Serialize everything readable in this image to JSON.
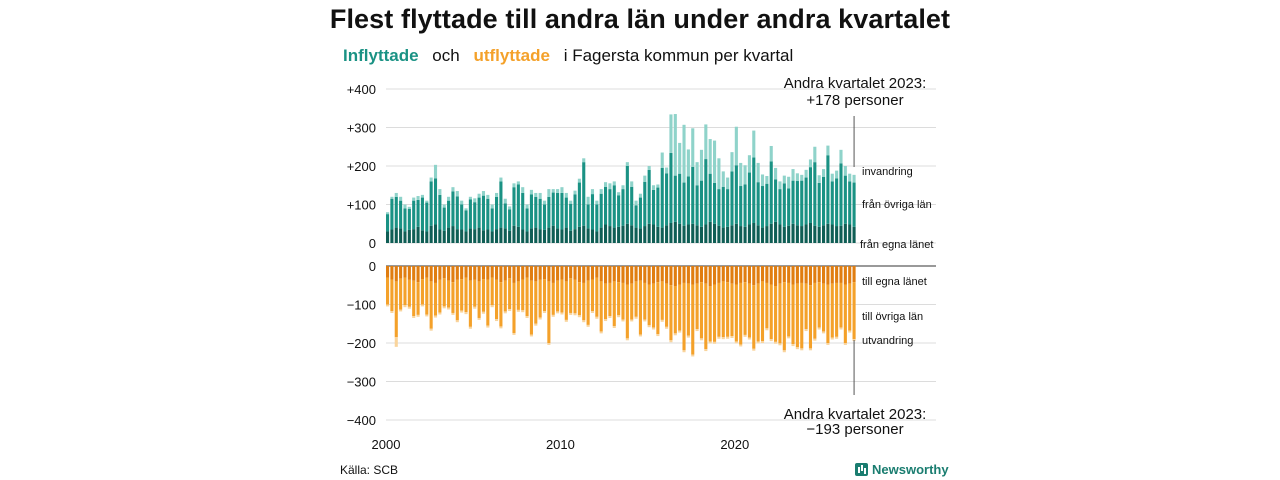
{
  "title": "Flest flyttade till andra län under andra kvartalet",
  "subtitle": {
    "inflyttade": "Inflyttade",
    "och": "och",
    "utflyttade": "utflyttade",
    "rest": "i Fagersta  kommun  per  kvartal"
  },
  "source": "Källa: SCB",
  "brand": "Newsworthy",
  "colors": {
    "in_local": "#0f5e55",
    "in_other": "#1a9284",
    "in_immigration": "#8fd3ca",
    "out_local": "#e07d10",
    "out_other": "#f4a12a",
    "out_emigration": "#f9d49c"
  },
  "chart_data": [
    {
      "type": "bar",
      "subtype": "stacked",
      "title": "Inflyttade",
      "x_start": "2000 Q1",
      "x_ticks": [
        "2000",
        "2010",
        "2020"
      ],
      "y_ticks": [
        "+400",
        "+300",
        "+200",
        "+100",
        "0"
      ],
      "ylim": [
        0,
        400
      ],
      "annotation": {
        "line1": "Andra kvartalet 2023:",
        "line2": "+178 personer"
      },
      "series": [
        {
          "name": "från egna länet",
          "values": [
            30,
            35,
            40,
            38,
            30,
            34,
            36,
            42,
            33,
            30,
            45,
            48,
            35,
            32,
            40,
            44,
            36,
            35,
            30,
            38,
            36,
            40,
            33,
            35,
            30,
            36,
            40,
            38,
            32,
            45,
            42,
            35,
            30,
            38,
            40,
            36,
            34,
            40,
            45,
            38,
            35,
            40,
            32,
            36,
            42,
            45,
            38,
            35,
            30,
            40,
            48,
            44,
            40,
            42,
            45,
            50,
            46,
            40,
            38,
            44,
            50,
            48,
            42,
            40,
            46,
            52,
            55,
            50,
            45,
            48,
            50,
            46,
            42,
            48,
            55,
            50,
            45,
            40,
            42,
            46,
            50,
            44,
            42,
            48,
            52,
            46,
            40,
            44,
            50,
            55,
            48,
            42,
            45,
            50,
            46,
            44,
            48,
            52,
            45,
            42,
            46,
            50,
            48,
            44,
            45,
            50,
            48,
            42
          ]
        },
        {
          "name": "från övriga län",
          "values": [
            45,
            80,
            80,
            72,
            60,
            55,
            74,
            70,
            85,
            75,
            115,
            120,
            90,
            60,
            70,
            90,
            85,
            65,
            55,
            75,
            70,
            78,
            90,
            80,
            60,
            84,
            120,
            65,
            55,
            100,
            110,
            95,
            60,
            88,
            80,
            79,
            66,
            80,
            86,
            92,
            95,
            78,
            70,
            90,
            115,
            165,
            62,
            92,
            70,
            88,
            98,
            96,
            110,
            82,
            95,
            150,
            100,
            58,
            80,
            115,
            140,
            90,
            102,
            155,
            135,
            182,
            120,
            130,
            112,
            125,
            148,
            104,
            120,
            170,
            125,
            106,
            95,
            106,
            98,
            140,
            152,
            104,
            110,
            135,
            170,
            112,
            108,
            110,
            162,
            110,
            92,
            113,
            97,
            112,
            115,
            118,
            122,
            145,
            165,
            114,
            126,
            178,
            112,
            124,
            162,
            125,
            112,
            115
          ]
        },
        {
          "name": "invandring",
          "values": [
            5,
            5,
            10,
            10,
            10,
            5,
            8,
            10,
            7,
            5,
            10,
            35,
            15,
            8,
            10,
            11,
            14,
            10,
            5,
            7,
            10,
            10,
            12,
            10,
            10,
            10,
            10,
            12,
            8,
            10,
            8,
            15,
            10,
            12,
            10,
            15,
            10,
            20,
            9,
            10,
            15,
            12,
            8,
            10,
            10,
            10,
            20,
            13,
            10,
            12,
            12,
            15,
            10,
            8,
            10,
            10,
            14,
            12,
            10,
            16,
            10,
            12,
            8,
            40,
            15,
            100,
            160,
            80,
            150,
            70,
            100,
            60,
            80,
            90,
            90,
            110,
            80,
            40,
            30,
            50,
            100,
            60,
            50,
            45,
            70,
            50,
            30,
            20,
            40,
            30,
            20,
            20,
            30,
            30,
            20,
            15,
            20,
            20,
            40,
            20,
            20,
            25,
            20,
            20,
            35,
            25,
            20,
            20
          ]
        }
      ]
    },
    {
      "type": "bar",
      "subtype": "stacked",
      "title": "Utflyttade",
      "x_start": "2000 Q1",
      "x_ticks": [
        "2000",
        "2010",
        "2020"
      ],
      "y_ticks": [
        "0",
        "−100",
        "−200",
        "−300",
        "−400"
      ],
      "ylim": [
        -400,
        0
      ],
      "annotation": {
        "line1": "Andra kvartalet 2023:",
        "line2": "−193 personer"
      },
      "series": [
        {
          "name": "till egna länet",
          "values": [
            -30,
            -35,
            -40,
            -33,
            -30,
            -36,
            -38,
            -42,
            -34,
            -30,
            -40,
            -44,
            -36,
            -32,
            -38,
            -42,
            -36,
            -34,
            -30,
            -38,
            -36,
            -40,
            -34,
            -35,
            -30,
            -36,
            -42,
            -38,
            -32,
            -44,
            -40,
            -35,
            -30,
            -38,
            -40,
            -36,
            -34,
            -40,
            -44,
            -38,
            -35,
            -40,
            -32,
            -36,
            -42,
            -44,
            -38,
            -35,
            -30,
            -40,
            -46,
            -44,
            -40,
            -42,
            -44,
            -48,
            -46,
            -40,
            -38,
            -44,
            -48,
            -46,
            -42,
            -40,
            -46,
            -50,
            -52,
            -48,
            -44,
            -46,
            -48,
            -46,
            -42,
            -46,
            -52,
            -48,
            -44,
            -40,
            -42,
            -46,
            -48,
            -44,
            -42,
            -46,
            -50,
            -46,
            -40,
            -44,
            -48,
            -52,
            -46,
            -42,
            -44,
            -48,
            -46,
            -44,
            -46,
            -50,
            -44,
            -42,
            -46,
            -48,
            -46,
            -44,
            -44,
            -48,
            -46,
            -42
          ]
        },
        {
          "name": "till övriga län",
          "values": [
            -70,
            -82,
            -145,
            -80,
            -72,
            -70,
            -92,
            -85,
            -66,
            -96,
            -123,
            -85,
            -85,
            -73,
            -70,
            -80,
            -105,
            -82,
            -90,
            -120,
            -70,
            -95,
            -85,
            -120,
            -72,
            -102,
            -115,
            -80,
            -80,
            -130,
            -74,
            -80,
            -100,
            -140,
            -110,
            -98,
            -83,
            -160,
            -83,
            -80,
            -86,
            -100,
            -90,
            -87,
            -86,
            -97,
            -115,
            -82,
            -102,
            -130,
            -92,
            -86,
            -116,
            -86,
            -95,
            -140,
            -93,
            -92,
            -140,
            -95,
            -106,
            -114,
            -135,
            -100,
            -112,
            -143,
            -123,
            -120,
            -175,
            -135,
            -182,
            -118,
            -146,
            -170,
            -144,
            -149,
            -140,
            -145,
            -142,
            -136,
            -148,
            -160,
            -137,
            -140,
            -165,
            -150,
            -155,
            -118,
            -142,
            -145,
            -155,
            -177,
            -139,
            -155,
            -165,
            -170,
            -118,
            -164,
            -145,
            -118,
            -124,
            -152,
            -140,
            -140,
            -116,
            -152,
            -122,
            -148
          ]
        },
        {
          "name": "utvandring",
          "values": [
            -5,
            -5,
            -25,
            -5,
            -5,
            -5,
            -5,
            -5,
            -5,
            -5,
            -5,
            -5,
            -5,
            -5,
            -5,
            -5,
            -5,
            -5,
            -5,
            -5,
            -5,
            -5,
            -5,
            -5,
            -5,
            -5,
            -5,
            -5,
            -5,
            -5,
            -5,
            -5,
            -5,
            -5,
            -5,
            -5,
            -5,
            -5,
            -5,
            -5,
            -5,
            -5,
            -5,
            -5,
            -5,
            -5,
            -5,
            -5,
            -5,
            -5,
            -5,
            -5,
            -5,
            -5,
            -5,
            -5,
            -5,
            -5,
            -5,
            -5,
            -5,
            -5,
            -5,
            -5,
            -5,
            -5,
            -5,
            -5,
            -5,
            -5,
            -5,
            -5,
            -5,
            -5,
            -5,
            -5,
            -5,
            -5,
            -5,
            -5,
            -5,
            -5,
            -5,
            -5,
            -5,
            -5,
            -5,
            -5,
            -5,
            -5,
            -5,
            -5,
            -5,
            -5,
            -5,
            -5,
            -5,
            -5,
            -5,
            -5,
            -5,
            -5,
            -5,
            -5,
            -5,
            -5,
            -5,
            -5
          ]
        }
      ]
    }
  ]
}
